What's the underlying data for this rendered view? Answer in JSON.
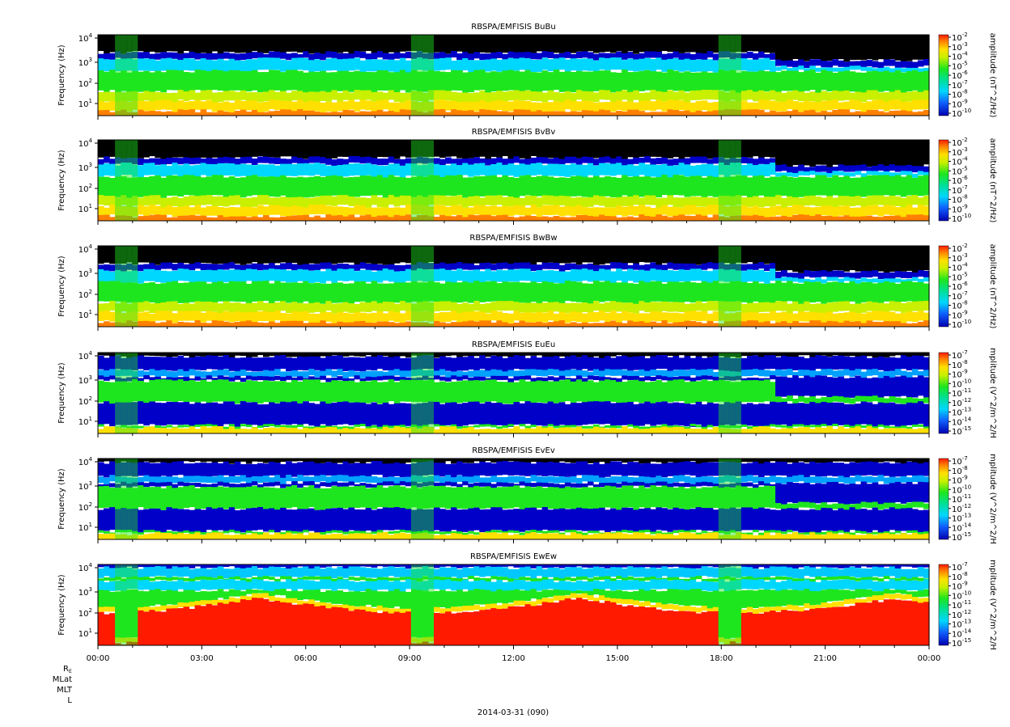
{
  "date_label": "2014-03-31 (090)",
  "ephemeris_labels": [
    "R",
    "MLat",
    "MLT",
    "L"
  ],
  "ephemeris_subscript": "E",
  "x_ticks": [
    "00:00",
    "03:00",
    "06:00",
    "09:00",
    "12:00",
    "15:00",
    "18:00",
    "21:00",
    "00:00"
  ],
  "colors": {
    "black": "#000000",
    "blue": "#0000c8",
    "cyan": "#00d7ff",
    "green": "#1ee61e",
    "yellow": "#ffe000",
    "red": "#ff1a00"
  },
  "chart_data": [
    {
      "type": "heatmap",
      "title": "RBSPA/EMFISIS  BuBu",
      "ylabel": "Frequency (Hz)",
      "y_scale": "log",
      "y_ticks": [
        "10",
        "10",
        "10",
        "10"
      ],
      "y_tick_exp": [
        "1",
        "2",
        "3",
        "4"
      ],
      "colorbar_label": "amplitude (nT^2/Hz)",
      "colorbar_ticks": [
        "10",
        "10",
        "10",
        "10",
        "10",
        "10",
        "10",
        "10",
        "10"
      ],
      "colorbar_exp": [
        "-2",
        "-3",
        "-4",
        "-5",
        "-6",
        "-7",
        "-8",
        "-9",
        "-10"
      ],
      "style": "B"
    },
    {
      "type": "heatmap",
      "title": "RBSPA/EMFISIS  BvBv",
      "ylabel": "Frequency (Hz)",
      "y_scale": "log",
      "y_ticks": [
        "10",
        "10",
        "10",
        "10"
      ],
      "y_tick_exp": [
        "1",
        "2",
        "3",
        "4"
      ],
      "colorbar_label": "amplitude (nT^2/Hz)",
      "colorbar_ticks": [
        "10",
        "10",
        "10",
        "10",
        "10",
        "10",
        "10",
        "10",
        "10"
      ],
      "colorbar_exp": [
        "-2",
        "-3",
        "-4",
        "-5",
        "-6",
        "-7",
        "-8",
        "-9",
        "-10"
      ],
      "style": "B"
    },
    {
      "type": "heatmap",
      "title": "RBSPA/EMFISIS  BwBw",
      "ylabel": "Frequency (Hz)",
      "y_scale": "log",
      "y_ticks": [
        "10",
        "10",
        "10",
        "10"
      ],
      "y_tick_exp": [
        "1",
        "2",
        "3",
        "4"
      ],
      "colorbar_label": "amplitude (nT^2/Hz)",
      "colorbar_ticks": [
        "10",
        "10",
        "10",
        "10",
        "10",
        "10",
        "10",
        "10",
        "10"
      ],
      "colorbar_exp": [
        "-2",
        "-3",
        "-4",
        "-5",
        "-6",
        "-7",
        "-8",
        "-9",
        "-10"
      ],
      "style": "B"
    },
    {
      "type": "heatmap",
      "title": "RBSPA/EMFISIS  EuEu",
      "ylabel": "Frequency (Hz)",
      "y_scale": "log",
      "y_ticks": [
        "10",
        "10",
        "10",
        "10"
      ],
      "y_tick_exp": [
        "1",
        "2",
        "3",
        "4"
      ],
      "colorbar_label": "mplitude (V^2/m^2/H",
      "colorbar_ticks": [
        "10",
        "10",
        "10",
        "10",
        "10",
        "10",
        "10",
        "10",
        "10"
      ],
      "colorbar_exp": [
        "-7",
        "-8",
        "-9",
        "-10",
        "-11",
        "-12",
        "-13",
        "-14",
        "-15"
      ],
      "style": "E"
    },
    {
      "type": "heatmap",
      "title": "RBSPA/EMFISIS  EvEv",
      "ylabel": "Frequency (Hz)",
      "y_scale": "log",
      "y_ticks": [
        "10",
        "10",
        "10",
        "10"
      ],
      "y_tick_exp": [
        "1",
        "2",
        "3",
        "4"
      ],
      "colorbar_label": "mplitude (V^2/m^2/H",
      "colorbar_ticks": [
        "10",
        "10",
        "10",
        "10",
        "10",
        "10",
        "10",
        "10",
        "10"
      ],
      "colorbar_exp": [
        "-7",
        "-8",
        "-9",
        "-10",
        "-11",
        "-12",
        "-13",
        "-14",
        "-15"
      ],
      "style": "E"
    },
    {
      "type": "heatmap",
      "title": "RBSPA/EMFISIS  EwEw",
      "ylabel": "Frequency (Hz)",
      "y_scale": "log",
      "y_ticks": [
        "10",
        "10",
        "10",
        "10"
      ],
      "y_tick_exp": [
        "1",
        "2",
        "3",
        "4"
      ],
      "colorbar_label": "mplitude (V^2/m^2/H",
      "colorbar_ticks": [
        "10",
        "10",
        "10",
        "10",
        "10",
        "10",
        "10",
        "10",
        "10"
      ],
      "colorbar_exp": [
        "-7",
        "-8",
        "-9",
        "-10",
        "-11",
        "-12",
        "-13",
        "-14",
        "-15"
      ],
      "style": "W"
    }
  ]
}
